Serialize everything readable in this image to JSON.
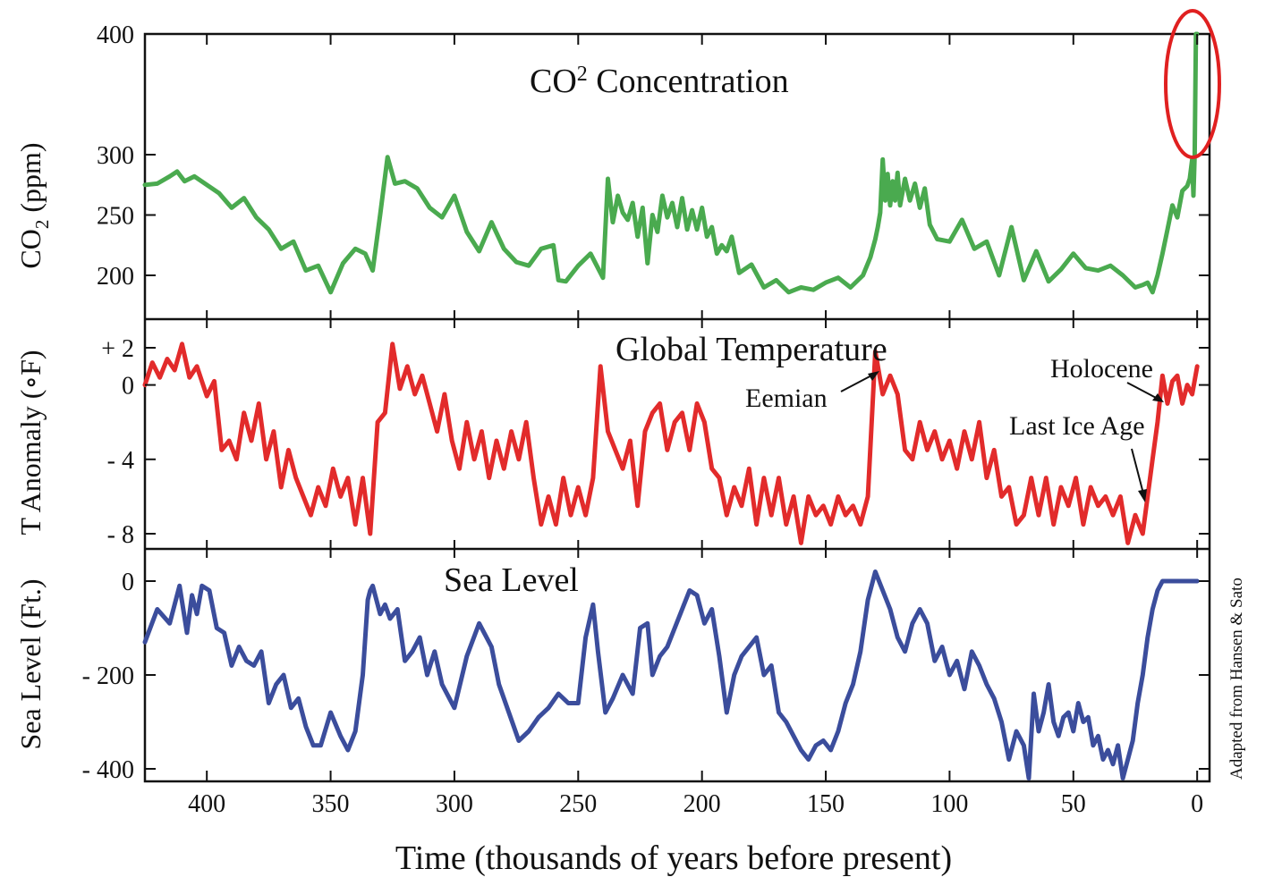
{
  "chart_data": [
    {
      "type": "line",
      "title": "CO² Concentration",
      "title_base": "CO",
      "title_sup": "2",
      "title_rest": " Concentration",
      "ylabel": "CO₂ (ppm)",
      "ylabel_base": "CO",
      "ylabel_sub": "2",
      "ylabel_rest": " (ppm)",
      "ylim": [
        170,
        400
      ],
      "xlim": [
        425,
        -5
      ],
      "yticks": [
        200,
        250,
        300,
        400
      ],
      "ytick_labels": [
        "200",
        "250",
        "300",
        "400"
      ],
      "series": [
        {
          "color": "#4aaa4f",
          "x": [
            425,
            420,
            415,
            412,
            409,
            405,
            395,
            390,
            385,
            380,
            375,
            370,
            365,
            360,
            355,
            350,
            345,
            340,
            336,
            333,
            330,
            327,
            324,
            320,
            315,
            310,
            305,
            300,
            295,
            290,
            285,
            280,
            275,
            270,
            265,
            260,
            258,
            255,
            250,
            245,
            240,
            238,
            236,
            234,
            232,
            230,
            228,
            226,
            224,
            222,
            220,
            218,
            216,
            214,
            212,
            210,
            208,
            206,
            204,
            202,
            200,
            198,
            196,
            194,
            192,
            190,
            188,
            185,
            180,
            175,
            170,
            165,
            160,
            155,
            150,
            145,
            140,
            135,
            132,
            130,
            129,
            128,
            127,
            126,
            125,
            124,
            123,
            122,
            121,
            120,
            118,
            116,
            114,
            112,
            110,
            108,
            105,
            100,
            95,
            90,
            85,
            80,
            75,
            70,
            65,
            60,
            55,
            50,
            45,
            40,
            35,
            30,
            25,
            22,
            20,
            18,
            16,
            14,
            12,
            10,
            8,
            6,
            4,
            3,
            2,
            1.5,
            1,
            0.5,
            0
          ],
          "values": [
            275,
            276,
            282,
            286,
            278,
            282,
            268,
            256,
            264,
            248,
            238,
            222,
            228,
            204,
            208,
            186,
            210,
            222,
            218,
            204,
            250,
            298,
            276,
            278,
            272,
            256,
            248,
            266,
            236,
            220,
            244,
            222,
            211,
            208,
            222,
            225,
            196,
            195,
            208,
            218,
            198,
            280,
            244,
            266,
            252,
            246,
            260,
            232,
            256,
            210,
            250,
            236,
            266,
            248,
            260,
            240,
            264,
            238,
            254,
            238,
            256,
            232,
            240,
            218,
            225,
            220,
            232,
            202,
            209,
            190,
            196,
            186,
            190,
            188,
            194,
            198,
            190,
            200,
            215,
            230,
            240,
            252,
            296,
            262,
            284,
            258,
            278,
            262,
            285,
            258,
            280,
            262,
            276,
            256,
            272,
            242,
            230,
            228,
            246,
            222,
            228,
            200,
            240,
            196,
            220,
            195,
            205,
            218,
            206,
            204,
            208,
            200,
            190,
            192,
            194,
            186,
            200,
            218,
            238,
            258,
            248,
            270,
            274,
            280,
            296,
            266,
            300,
            400,
            400
          ]
        }
      ]
    },
    {
      "type": "line",
      "title": "Global Temperature",
      "ylabel": "T Anomaly (∘F)",
      "ylim": [
        -9,
        3
      ],
      "yticks": [
        2,
        0,
        -4,
        -8
      ],
      "ytick_labels": [
        "+ 2",
        "0",
        "- 4",
        "- 8"
      ],
      "annotations": [
        {
          "text": "Eemian",
          "x": 128,
          "y": 2.5
        },
        {
          "text": "Holocene",
          "x": 10,
          "y": 0.5
        },
        {
          "text": "Last Ice Age",
          "x": 22,
          "y": -7.3
        }
      ],
      "series": [
        {
          "color": "#e22b2b",
          "x": [
            425,
            422,
            419,
            416,
            413,
            410,
            407,
            404,
            400,
            397,
            394,
            391,
            388,
            385,
            382,
            379,
            376,
            373,
            370,
            367,
            364,
            361,
            358,
            355,
            352,
            349,
            346,
            343,
            340,
            337,
            334,
            331,
            328,
            325,
            322,
            319,
            316,
            313,
            310,
            307,
            304,
            301,
            298,
            295,
            292,
            289,
            286,
            283,
            280,
            277,
            274,
            271,
            268,
            265,
            262,
            259,
            256,
            253,
            250,
            247,
            244,
            241,
            238,
            235,
            232,
            229,
            226,
            223,
            220,
            217,
            214,
            211,
            208,
            205,
            202,
            199,
            196,
            193,
            190,
            187,
            184,
            181,
            178,
            175,
            172,
            169,
            166,
            163,
            160,
            157,
            154,
            151,
            148,
            145,
            142,
            139,
            136,
            133,
            130,
            127,
            124,
            121,
            118,
            115,
            112,
            109,
            106,
            103,
            100,
            97,
            94,
            91,
            88,
            85,
            82,
            79,
            76,
            73,
            70,
            67,
            64,
            61,
            58,
            55,
            52,
            49,
            46,
            43,
            40,
            37,
            34,
            31,
            28,
            25,
            22,
            20,
            18,
            16,
            14,
            12,
            10,
            8,
            6,
            4,
            2,
            0
          ],
          "values": [
            0,
            1.2,
            0.4,
            1.4,
            0.8,
            2.2,
            0.4,
            1.0,
            -0.6,
            0.2,
            -3.5,
            -3.0,
            -4.0,
            -1.5,
            -3.0,
            -1.0,
            -4.0,
            -2.5,
            -5.5,
            -3.5,
            -5.0,
            -6.0,
            -7.0,
            -5.5,
            -6.5,
            -4.5,
            -6.0,
            -5.0,
            -7.5,
            -5.0,
            -8.0,
            -2.0,
            -1.5,
            2.2,
            -0.2,
            1.0,
            -0.5,
            0.5,
            -1.0,
            -2.5,
            -0.5,
            -3.0,
            -4.5,
            -2.0,
            -4.0,
            -2.5,
            -5.0,
            -3.0,
            -4.5,
            -2.5,
            -4.0,
            -2.0,
            -5.0,
            -7.5,
            -6.0,
            -7.5,
            -5.0,
            -7.0,
            -5.5,
            -7.0,
            -5.0,
            1.0,
            -2.5,
            -3.5,
            -4.5,
            -3.0,
            -6.5,
            -2.5,
            -1.5,
            -1.0,
            -3.5,
            -2.0,
            -1.5,
            -3.5,
            -1.0,
            -2.0,
            -4.5,
            -5.0,
            -7.0,
            -5.5,
            -6.5,
            -4.5,
            -7.5,
            -5.0,
            -7.0,
            -5.0,
            -7.5,
            -6.0,
            -8.5,
            -6.0,
            -7.0,
            -6.5,
            -7.5,
            -6.0,
            -7.0,
            -6.5,
            -7.5,
            -6.0,
            1.8,
            -0.5,
            0.5,
            -0.5,
            -3.5,
            -4.0,
            -2.0,
            -3.5,
            -2.5,
            -4.0,
            -3.0,
            -4.5,
            -2.5,
            -4.0,
            -2.0,
            -5.0,
            -3.5,
            -6.0,
            -5.5,
            -7.5,
            -7.0,
            -5.0,
            -7.0,
            -5.0,
            -7.5,
            -5.5,
            -6.5,
            -5.0,
            -7.5,
            -5.5,
            -6.5,
            -6.0,
            -7.0,
            -6.0,
            -8.5,
            -7.0,
            -8.0,
            -6.0,
            -4.0,
            -2.0,
            0.5,
            -1.0,
            0.2,
            0.5,
            -1.0,
            0,
            -0.5,
            1.0
          ]
        }
      ]
    },
    {
      "type": "line",
      "title": "Sea Level",
      "ylabel": "Sea Level (Ft.)",
      "ylim": [
        -410,
        60
      ],
      "yticks": [
        0,
        -200,
        -400
      ],
      "ytick_labels": [
        "0",
        "- 200",
        "- 400"
      ],
      "series": [
        {
          "color": "#3b4d9c",
          "x": [
            425,
            420,
            415,
            411,
            408,
            406,
            404,
            402,
            399,
            396,
            393,
            390,
            387,
            384,
            381,
            378,
            375,
            372,
            369,
            366,
            363,
            360,
            357,
            354,
            350,
            346,
            343,
            340,
            337,
            335,
            334,
            333,
            330,
            328,
            326,
            323,
            320,
            317,
            314,
            311,
            308,
            305,
            302,
            300,
            295,
            290,
            285,
            282,
            278,
            274,
            270,
            266,
            262,
            258,
            254,
            250,
            247,
            244,
            242,
            239,
            236,
            232,
            228,
            225,
            222,
            220,
            217,
            214,
            211,
            208,
            205,
            202,
            199,
            196,
            193,
            190,
            187,
            184,
            181,
            178,
            175,
            172,
            169,
            166,
            163,
            160,
            157,
            154,
            151,
            148,
            145,
            142,
            139,
            136,
            133,
            130,
            127,
            124,
            121,
            118,
            115,
            112,
            109,
            106,
            103,
            100,
            97,
            94,
            91,
            88,
            85,
            82,
            79,
            76,
            73,
            70,
            68,
            66,
            64,
            62,
            60,
            58,
            56,
            54,
            52,
            50,
            48,
            46,
            44,
            42,
            40,
            38,
            36,
            34,
            32,
            30,
            28,
            26,
            24,
            22,
            20,
            18,
            16,
            14,
            12,
            10,
            8,
            6,
            4,
            2,
            0
          ],
          "values": [
            -130,
            -60,
            -90,
            -10,
            -110,
            -30,
            -70,
            -10,
            -20,
            -100,
            -110,
            -180,
            -140,
            -170,
            -180,
            -150,
            -260,
            -220,
            -200,
            -270,
            -250,
            -310,
            -350,
            -350,
            -280,
            -330,
            -360,
            -320,
            -200,
            -40,
            -20,
            -10,
            -70,
            -50,
            -80,
            -60,
            -170,
            -150,
            -120,
            -200,
            -150,
            -220,
            -250,
            -270,
            -160,
            -90,
            -140,
            -220,
            -280,
            -340,
            -320,
            -290,
            -270,
            -240,
            -260,
            -260,
            -120,
            -50,
            -150,
            -280,
            -250,
            -200,
            -240,
            -100,
            -90,
            -200,
            -160,
            -140,
            -100,
            -60,
            -20,
            -30,
            -90,
            -60,
            -160,
            -280,
            -200,
            -160,
            -140,
            -120,
            -200,
            -180,
            -280,
            -300,
            -330,
            -360,
            -380,
            -350,
            -340,
            -360,
            -320,
            -260,
            -220,
            -150,
            -40,
            20,
            -20,
            -60,
            -120,
            -150,
            -90,
            -60,
            -90,
            -170,
            -140,
            -200,
            -170,
            -230,
            -150,
            -180,
            -220,
            -250,
            -300,
            -380,
            -320,
            -350,
            -420,
            -240,
            -320,
            -280,
            -220,
            -300,
            -330,
            -290,
            -280,
            -320,
            -260,
            -300,
            -290,
            -350,
            -330,
            -380,
            -360,
            -390,
            -350,
            -420,
            -380,
            -340,
            -260,
            -200,
            -120,
            -60,
            -20,
            0,
            0,
            0,
            0,
            0,
            0,
            0,
            0
          ]
        }
      ]
    },
    {
      "type": "line",
      "xlabel": "Time (thousands of years before present)",
      "xticks": [
        400,
        350,
        300,
        250,
        200,
        150,
        100,
        50,
        0
      ],
      "xtick_labels": [
        "400",
        "350",
        "300",
        "250",
        "200",
        "150",
        "100",
        "50",
        "0"
      ],
      "credit": "Adapted from Hansen & Sato",
      "highlight_color": "#e02020"
    }
  ]
}
